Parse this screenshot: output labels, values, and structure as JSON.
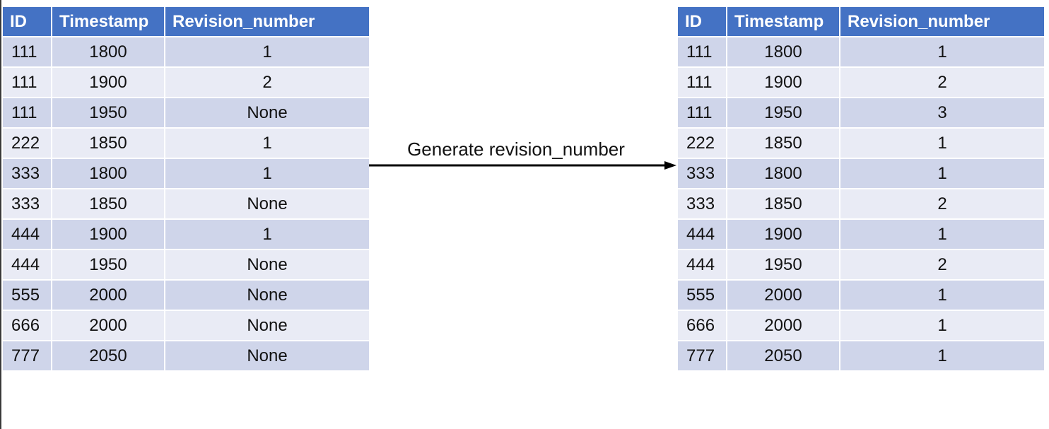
{
  "columns": {
    "id": "ID",
    "timestamp": "Timestamp",
    "revision": "Revision_number"
  },
  "arrow_label": "Generate revision_number",
  "input_table": [
    {
      "id": "111",
      "timestamp": "1800",
      "revision": "1"
    },
    {
      "id": "111",
      "timestamp": "1900",
      "revision": "2"
    },
    {
      "id": "111",
      "timestamp": "1950",
      "revision": "None"
    },
    {
      "id": "222",
      "timestamp": "1850",
      "revision": "1"
    },
    {
      "id": "333",
      "timestamp": "1800",
      "revision": "1"
    },
    {
      "id": "333",
      "timestamp": "1850",
      "revision": "None"
    },
    {
      "id": "444",
      "timestamp": "1900",
      "revision": "1"
    },
    {
      "id": "444",
      "timestamp": "1950",
      "revision": "None"
    },
    {
      "id": "555",
      "timestamp": "2000",
      "revision": "None"
    },
    {
      "id": "666",
      "timestamp": "2000",
      "revision": "None"
    },
    {
      "id": "777",
      "timestamp": "2050",
      "revision": "None"
    }
  ],
  "output_table": [
    {
      "id": "111",
      "timestamp": "1800",
      "revision": "1"
    },
    {
      "id": "111",
      "timestamp": "1900",
      "revision": "2"
    },
    {
      "id": "111",
      "timestamp": "1950",
      "revision": "3"
    },
    {
      "id": "222",
      "timestamp": "1850",
      "revision": "1"
    },
    {
      "id": "333",
      "timestamp": "1800",
      "revision": "1"
    },
    {
      "id": "333",
      "timestamp": "1850",
      "revision": "2"
    },
    {
      "id": "444",
      "timestamp": "1900",
      "revision": "1"
    },
    {
      "id": "444",
      "timestamp": "1950",
      "revision": "2"
    },
    {
      "id": "555",
      "timestamp": "2000",
      "revision": "1"
    },
    {
      "id": "666",
      "timestamp": "2000",
      "revision": "1"
    },
    {
      "id": "777",
      "timestamp": "2050",
      "revision": "1"
    }
  ],
  "colors": {
    "header": "#4472c4",
    "row_odd": "#cfd5ea",
    "row_even": "#e9ebf5"
  }
}
